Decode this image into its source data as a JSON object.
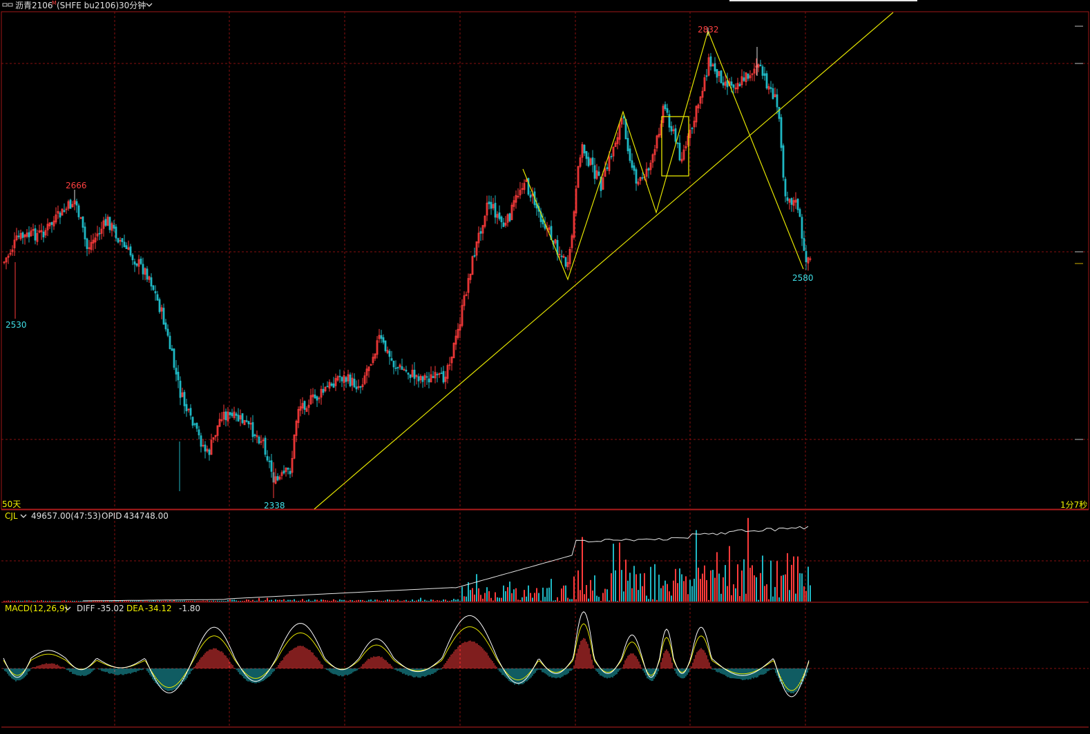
{
  "header": {
    "symbol_icon": "window-restore-icon",
    "symbol": "沥青2106",
    "superscript": "M",
    "code": "(SHFE bu2106)",
    "period": "30分钟",
    "period_dropdown_icon": "chevron-down-icon"
  },
  "price_panel": {
    "high1": "2666",
    "low1": "2530",
    "low2": "2338",
    "high2": "2832",
    "last_low": "2580",
    "range_left": "50天",
    "range_right": "1分7秒"
  },
  "volume_panel": {
    "name": "CJL",
    "value": "49657.00(47:53)",
    "opid_label": "OPID",
    "opid_value": "434748.00"
  },
  "macd_panel": {
    "name": "MACD(12,26,9)",
    "diff_label": "DIFF",
    "diff_value": "-35.02",
    "dea_label": "DEA",
    "dea_value": "-34.12",
    "macd_value": "-1.80"
  },
  "colors": {
    "up": "#ff3b3b",
    "down": "#1fb8c4",
    "grid": "#8a1010",
    "trendline": "#e6e600",
    "opid_line": "#e8e8e8",
    "diff_line": "#ffffff",
    "dea_line": "#e6e600",
    "label_high": "#ff4040",
    "label_low": "#40e0e8"
  }
}
